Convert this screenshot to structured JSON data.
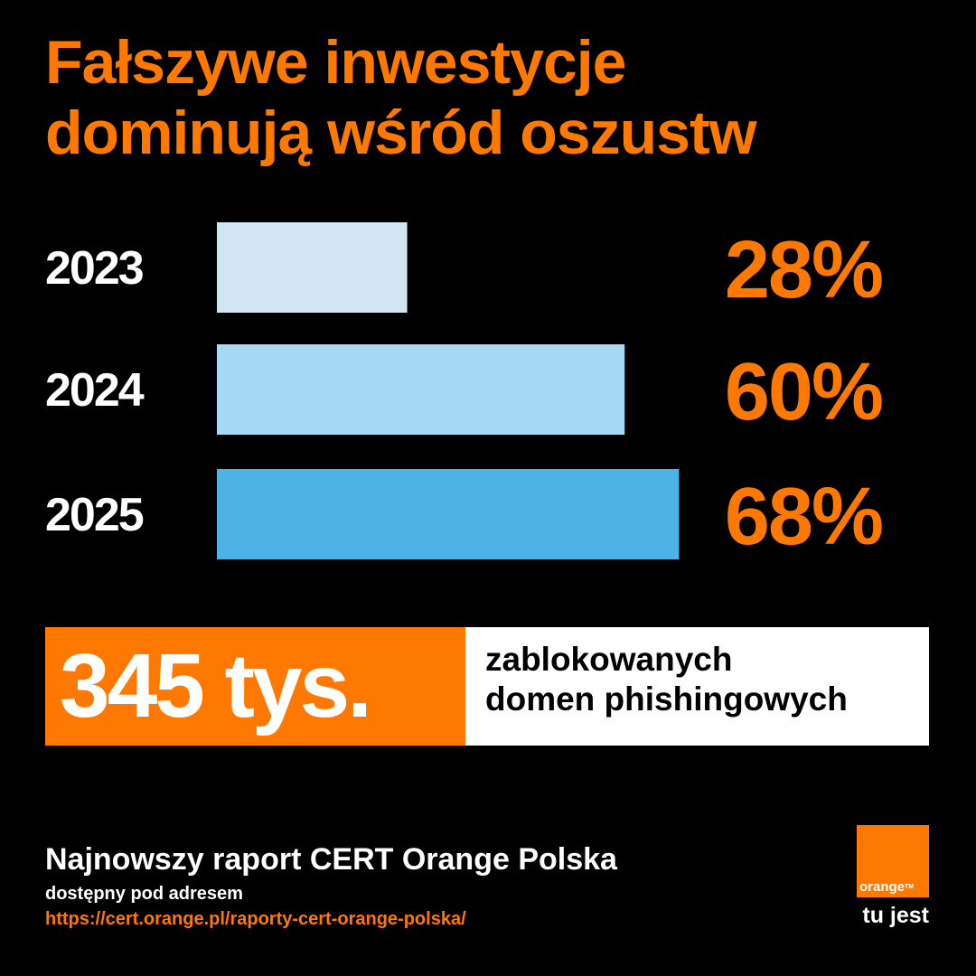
{
  "title": {
    "line1": "Fałszywe inwestycje",
    "line2": "dominują wśród oszustw"
  },
  "chart_data": {
    "type": "bar",
    "orientation": "horizontal",
    "categories": [
      "2023",
      "2024",
      "2025"
    ],
    "values": [
      28,
      60,
      68
    ],
    "value_labels": [
      "28%",
      "60%",
      "68%"
    ],
    "bar_colors": [
      "#d1e6f3",
      "#a8d9f4",
      "#4db3e6"
    ],
    "xlim": [
      0,
      100
    ],
    "grid": false,
    "legend": "none"
  },
  "stat": {
    "number": "345 tys.",
    "desc_line1": "zablokowanych",
    "desc_line2": "domen phishingowych"
  },
  "footer": {
    "heading": "Najnowszy raport CERT Orange Polska",
    "sub": "dostępny pod adresem",
    "link": "https://cert.orange.pl/raporty-cert-orange-polska/"
  },
  "logo": {
    "word": "orange",
    "tm": "TM",
    "slogan": "tu jest"
  },
  "colors": {
    "background": "#000000",
    "accent": "#ff7900",
    "text": "#ffffff",
    "panel": "#ffffff"
  }
}
